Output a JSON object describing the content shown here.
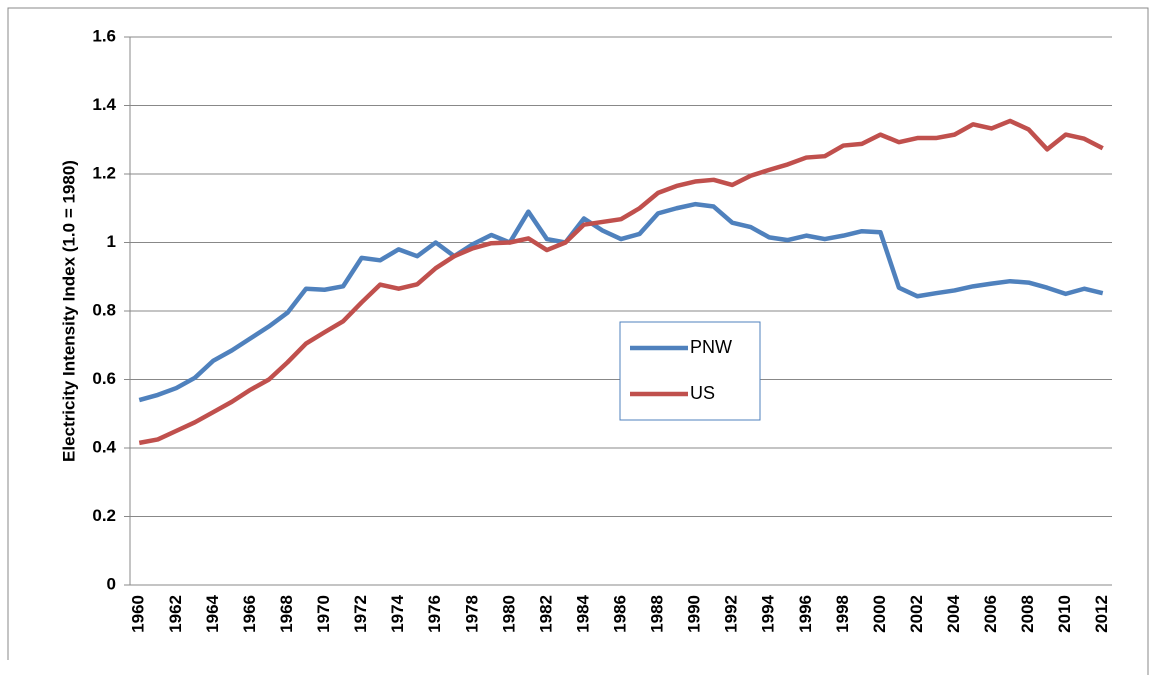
{
  "chart_data": {
    "type": "line",
    "y_label": "Electricity Intensity Index (1.0 = 1980)",
    "categories": [
      "1960",
      null,
      "1962",
      null,
      "1964",
      null,
      "1966",
      null,
      "1968",
      null,
      "1970",
      null,
      "1972",
      null,
      "1974",
      null,
      "1976",
      null,
      "1978",
      null,
      "1980",
      null,
      "1982",
      null,
      "1984",
      null,
      "1986",
      null,
      "1988",
      null,
      "1990",
      null,
      "1992",
      null,
      "1994",
      null,
      "1996",
      null,
      "1998",
      null,
      "2000",
      null,
      "2002",
      null,
      "2004",
      null,
      "2006",
      null,
      "2008",
      null,
      "2010",
      null,
      "2012"
    ],
    "series": [
      {
        "name": "PNW",
        "color": "#4f81bd",
        "values": [
          0.54,
          0.555,
          0.575,
          0.605,
          0.655,
          0.685,
          0.72,
          0.755,
          0.795,
          0.865,
          0.862,
          0.872,
          0.955,
          0.948,
          0.98,
          0.96,
          1.0,
          0.96,
          0.995,
          1.022,
          1.0,
          1.09,
          1.01,
          1.0,
          1.07,
          1.035,
          1.01,
          1.025,
          1.085,
          1.1,
          1.112,
          1.105,
          1.058,
          1.045,
          1.015,
          1.007,
          1.02,
          1.01,
          1.02,
          1.033,
          1.03,
          0.868,
          0.843,
          0.852,
          0.86,
          0.872,
          0.88,
          0.887,
          0.883,
          0.868,
          0.85,
          0.865,
          0.852
        ]
      },
      {
        "name": "US",
        "color": "#c0504d",
        "values": [
          0.415,
          0.425,
          0.45,
          0.475,
          0.505,
          0.535,
          0.57,
          0.6,
          0.65,
          0.705,
          0.738,
          0.77,
          0.825,
          0.877,
          0.865,
          0.878,
          0.925,
          0.96,
          0.983,
          0.998,
          1.0,
          1.012,
          0.978,
          1.0,
          1.052,
          1.06,
          1.068,
          1.1,
          1.145,
          1.165,
          1.178,
          1.183,
          1.168,
          1.195,
          1.212,
          1.228,
          1.248,
          1.252,
          1.283,
          1.288,
          1.315,
          1.293,
          1.305,
          1.305,
          1.315,
          1.345,
          1.333,
          1.355,
          1.33,
          1.272,
          1.315,
          1.303,
          1.275
        ]
      }
    ],
    "ylim": [
      0,
      1.6
    ],
    "yticks": [
      0,
      0.2,
      0.4,
      0.6,
      0.8,
      1,
      1.2,
      1.4,
      1.6
    ],
    "grid": true,
    "legend": "center"
  }
}
